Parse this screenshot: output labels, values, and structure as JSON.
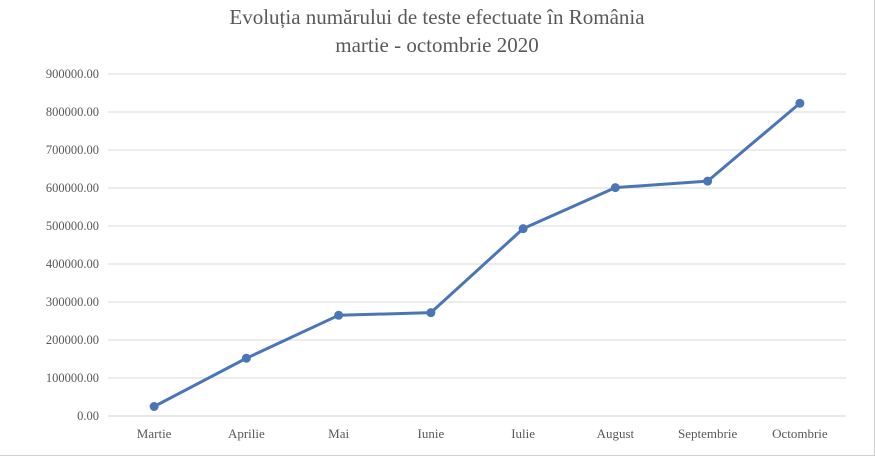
{
  "chart_data": {
    "type": "line",
    "title": "Evoluția numărului de teste efectuate în România",
    "subtitle": "martie - octombrie 2020",
    "categories": [
      "Martie",
      "Aprilie",
      "Mai",
      "Iunie",
      "Iulie",
      "August",
      "Septembrie",
      "Octombrie"
    ],
    "series": [
      {
        "values": [
          25000,
          152000,
          265000,
          272000,
          493000,
          601000,
          618000,
          823000
        ],
        "color": "#4a76b8"
      }
    ],
    "ylim": [
      0,
      900000
    ],
    "yticks": [
      "0.00",
      "100000.00",
      "200000.00",
      "300000.00",
      "400000.00",
      "500000.00",
      "600000.00",
      "700000.00",
      "800000.00",
      "900000.00"
    ],
    "grid": true,
    "legend": "none"
  }
}
